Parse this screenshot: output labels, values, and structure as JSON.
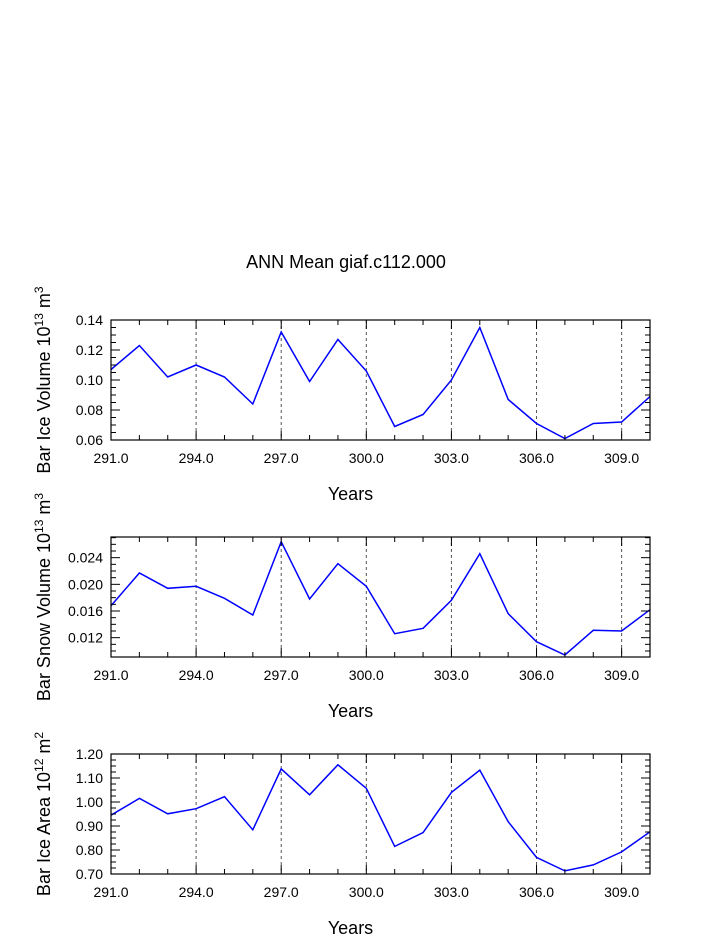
{
  "title": "ANN Mean giaf.c112.000",
  "colors": {
    "line": "#0000ff",
    "axis": "#000000",
    "grid": "#000000"
  },
  "chart_data": [
    {
      "type": "line",
      "ylabel": "Bar Ice Volume 10",
      "ylabel_exp": "13",
      "ylabel_unit": "m",
      "ylabel_unit_exp": "3",
      "xlabel": "Years",
      "xlim": [
        291,
        310
      ],
      "ylim": [
        0.06,
        0.14
      ],
      "xticks": [
        "291.0",
        "294.0",
        "297.0",
        "300.0",
        "303.0",
        "306.0",
        "309.0"
      ],
      "yticks": [
        "0.06",
        "0.08",
        "0.10",
        "0.12",
        "0.14"
      ],
      "grid": "vertical dashed at major x ticks",
      "x": [
        291,
        292,
        293,
        294,
        295,
        296,
        297,
        298,
        299,
        300,
        301,
        302,
        303,
        304,
        305,
        306,
        307,
        308,
        309,
        310
      ],
      "values": [
        0.107,
        0.123,
        0.102,
        0.11,
        0.102,
        0.084,
        0.132,
        0.099,
        0.127,
        0.106,
        0.069,
        0.077,
        0.1,
        0.135,
        0.087,
        0.071,
        0.061,
        0.071,
        0.072,
        0.089
      ]
    },
    {
      "type": "line",
      "ylabel": "Bar Snow Volume 10",
      "ylabel_exp": "13",
      "ylabel_unit": "m",
      "ylabel_unit_exp": "3",
      "xlabel": "Years",
      "xlim": [
        291,
        310
      ],
      "ylim": [
        0.0091,
        0.0271
      ],
      "xticks": [
        "291.0",
        "294.0",
        "297.0",
        "300.0",
        "303.0",
        "306.0",
        "309.0"
      ],
      "yticks": [
        "0.012",
        "0.016",
        "0.020",
        "0.024"
      ],
      "grid": "vertical dashed at major x ticks",
      "x": [
        291,
        292,
        293,
        294,
        295,
        296,
        297,
        298,
        299,
        300,
        301,
        302,
        303,
        304,
        305,
        306,
        307,
        308,
        309,
        310
      ],
      "values": [
        0.0168,
        0.0217,
        0.0194,
        0.0197,
        0.0179,
        0.0154,
        0.0264,
        0.0178,
        0.0231,
        0.0197,
        0.0126,
        0.0134,
        0.0176,
        0.0246,
        0.0156,
        0.0114,
        0.0094,
        0.0131,
        0.013,
        0.0162
      ]
    },
    {
      "type": "line",
      "ylabel": "Bar Ice Area 10",
      "ylabel_exp": "12",
      "ylabel_unit": "m",
      "ylabel_unit_exp": "2",
      "xlabel": "Years",
      "xlim": [
        291,
        310
      ],
      "ylim": [
        0.7,
        1.2
      ],
      "xticks": [
        "291.0",
        "294.0",
        "297.0",
        "300.0",
        "303.0",
        "306.0",
        "309.0"
      ],
      "yticks": [
        "0.70",
        "0.80",
        "0.90",
        "1.00",
        "1.10",
        "1.20"
      ],
      "grid": "vertical dashed at major x ticks",
      "x": [
        291,
        292,
        293,
        294,
        295,
        296,
        297,
        298,
        299,
        300,
        301,
        302,
        303,
        304,
        305,
        306,
        307,
        308,
        309,
        310
      ],
      "values": [
        0.945,
        1.015,
        0.951,
        0.972,
        1.022,
        0.884,
        1.138,
        1.03,
        1.155,
        1.057,
        0.815,
        0.873,
        1.04,
        1.133,
        0.918,
        0.769,
        0.713,
        0.738,
        0.792,
        0.876
      ]
    }
  ]
}
